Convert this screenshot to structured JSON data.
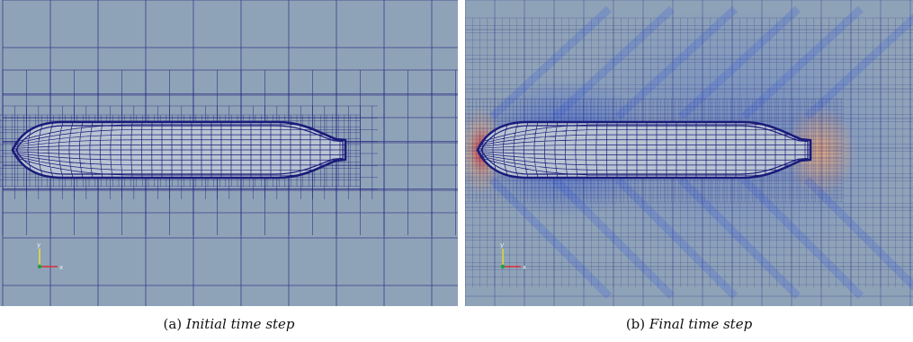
{
  "figure": {
    "panels": [
      {
        "id": "a",
        "caption_tag": "(a)",
        "caption_text": "Initial time step",
        "mesh_color": "#1a1a7a",
        "background_color": "#8fa3b8",
        "axis_labels": {
          "y": "y",
          "x": "x"
        }
      },
      {
        "id": "b",
        "caption_tag": "(b)",
        "caption_text": "Final time step",
        "mesh_color": "#1a1a7a",
        "background_color": "#8fa3b8",
        "field_colors": {
          "low": "#3a5fd6",
          "high": "#d8262a",
          "mid": "#e8a878"
        },
        "axis_labels": {
          "y": "y",
          "x": "x"
        }
      }
    ]
  }
}
